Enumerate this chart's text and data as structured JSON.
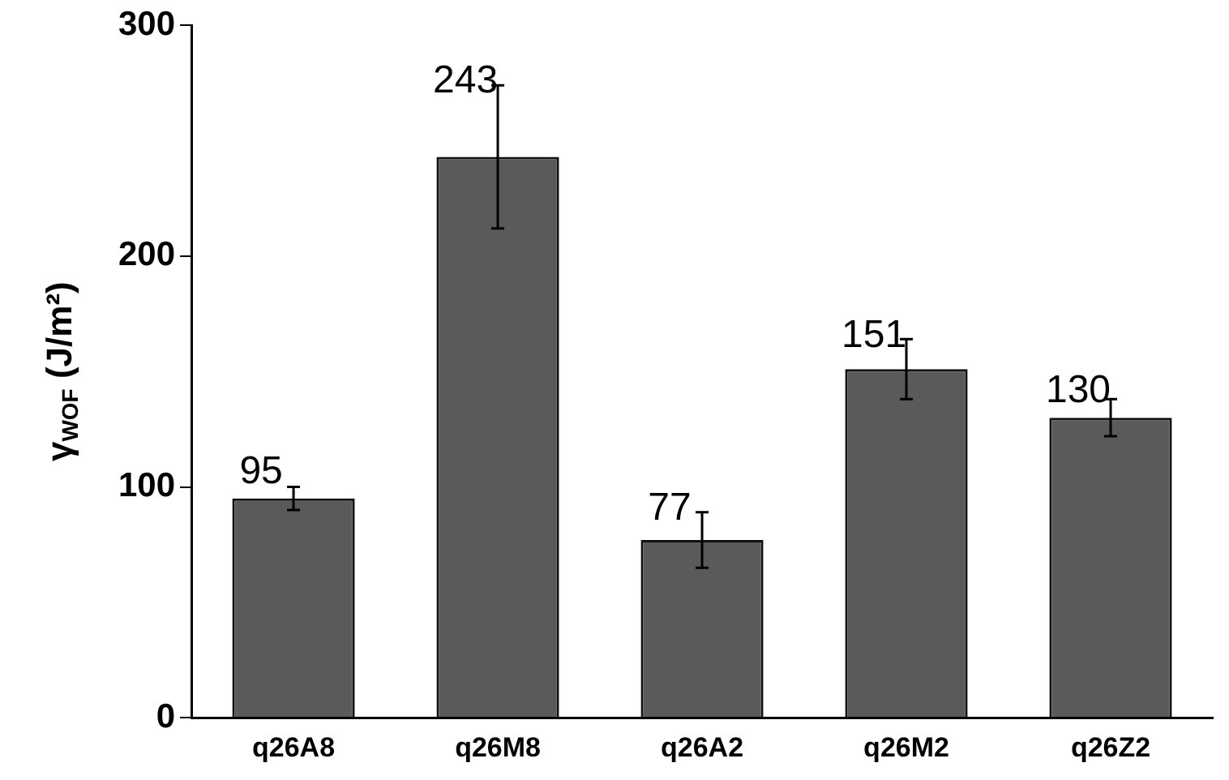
{
  "chart_data": {
    "type": "bar",
    "ylabel": "γ$_{WOF}$ (J/m²)",
    "categories": [
      "q26A8",
      "q26M8",
      "q26A2",
      "q26M2",
      "q26Z2"
    ],
    "values": [
      95,
      243,
      77,
      151,
      130
    ],
    "errors": [
      5,
      31,
      12,
      13,
      8
    ],
    "color": "#5a5a5a",
    "ylim": [
      0,
      300
    ],
    "yticks": [
      0,
      100,
      200,
      300
    ],
    "grid": false,
    "legend": false,
    "data_labels": true
  }
}
